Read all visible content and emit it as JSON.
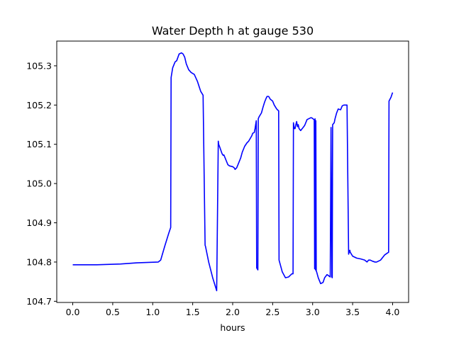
{
  "chart_data": {
    "type": "line",
    "title": "Water Depth h at gauge 530",
    "xlabel": "hours",
    "ylabel": "",
    "xlim": [
      -0.2,
      4.2
    ],
    "ylim": [
      104.697,
      105.363
    ],
    "xticks": [
      0.0,
      0.5,
      1.0,
      1.5,
      2.0,
      2.5,
      3.0,
      3.5,
      4.0
    ],
    "xtick_labels": [
      "0.0",
      "0.5",
      "1.0",
      "1.5",
      "2.0",
      "2.5",
      "3.0",
      "3.5",
      "4.0"
    ],
    "yticks": [
      104.7,
      104.8,
      104.9,
      105.0,
      105.1,
      105.2,
      105.3
    ],
    "ytick_labels": [
      "104.7",
      "104.8",
      "104.9",
      "105.0",
      "105.1",
      "105.2",
      "105.3"
    ],
    "grid": false,
    "colors": {
      "line": "#0000ff",
      "axes": "#000000",
      "background": "#ffffff"
    },
    "series": [
      {
        "name": "",
        "x": [
          0.0,
          0.3,
          0.6,
          0.8,
          1.07,
          1.1,
          1.15,
          1.2,
          1.225,
          1.23,
          1.25,
          1.28,
          1.3,
          1.33,
          1.36,
          1.38,
          1.4,
          1.42,
          1.45,
          1.48,
          1.52,
          1.56,
          1.6,
          1.63,
          1.655,
          1.66,
          1.7,
          1.75,
          1.8,
          1.82,
          1.825,
          1.84,
          1.86,
          1.87,
          1.88,
          1.89,
          1.9,
          1.92,
          1.94,
          1.96,
          2.0,
          2.02,
          2.03,
          2.05,
          2.07,
          2.1,
          2.12,
          2.15,
          2.18,
          2.2,
          2.22,
          2.24,
          2.25,
          2.27,
          2.28,
          2.295,
          2.3,
          2.315,
          2.32,
          2.33,
          2.36,
          2.38,
          2.4,
          2.42,
          2.43,
          2.45,
          2.47,
          2.5,
          2.52,
          2.55,
          2.575,
          2.58,
          2.62,
          2.66,
          2.7,
          2.74,
          2.755,
          2.76,
          2.77,
          2.78,
          2.79,
          2.8,
          2.81,
          2.82,
          2.83,
          2.85,
          2.87,
          2.9,
          2.93,
          2.95,
          2.98,
          3.0,
          3.02,
          3.025,
          3.03,
          3.035,
          3.04,
          3.045,
          3.05,
          3.07,
          3.1,
          3.13,
          3.15,
          3.18,
          3.2,
          3.22,
          3.23,
          3.24,
          3.245,
          3.25,
          3.27,
          3.28,
          3.3,
          3.32,
          3.35,
          3.37,
          3.39,
          3.41,
          3.43,
          3.45,
          3.46,
          3.465,
          3.47,
          3.5,
          3.55,
          3.6,
          3.65,
          3.68,
          3.7,
          3.72,
          3.75,
          3.78,
          3.8,
          3.85,
          3.9,
          3.95,
          3.955,
          3.96,
          3.98,
          4.0
        ],
        "y": [
          104.793,
          104.793,
          104.795,
          104.798,
          104.8,
          104.805,
          104.84,
          104.873,
          104.888,
          105.27,
          105.295,
          105.31,
          105.313,
          105.33,
          105.333,
          105.33,
          105.322,
          105.305,
          105.29,
          105.283,
          105.278,
          105.26,
          105.235,
          105.225,
          104.843,
          104.84,
          104.8,
          104.76,
          104.727,
          105.108,
          105.1,
          105.092,
          105.08,
          105.075,
          105.072,
          105.073,
          105.068,
          105.058,
          105.048,
          105.045,
          105.043,
          105.04,
          105.036,
          105.04,
          105.05,
          105.065,
          105.08,
          105.095,
          105.104,
          105.108,
          105.115,
          105.122,
          105.128,
          105.13,
          105.14,
          105.16,
          104.785,
          104.78,
          105.165,
          105.17,
          105.18,
          105.195,
          105.208,
          105.218,
          105.222,
          105.222,
          105.215,
          105.21,
          105.2,
          105.19,
          105.185,
          104.805,
          104.775,
          104.76,
          104.762,
          104.77,
          104.77,
          105.155,
          105.14,
          105.14,
          105.15,
          105.158,
          105.145,
          105.15,
          105.14,
          105.135,
          105.14,
          105.148,
          105.163,
          105.165,
          105.168,
          105.166,
          105.162,
          104.783,
          105.165,
          104.78,
          105.16,
          104.777,
          104.775,
          104.76,
          104.745,
          104.748,
          104.76,
          104.768,
          104.765,
          104.762,
          105.143,
          104.762,
          104.76,
          105.15,
          105.155,
          105.165,
          105.18,
          105.19,
          105.188,
          105.198,
          105.2,
          105.2,
          105.2,
          104.82,
          104.828,
          104.83,
          104.825,
          104.815,
          104.81,
          104.808,
          104.805,
          104.8,
          104.805,
          104.805,
          104.802,
          104.8,
          104.8,
          104.805,
          104.818,
          104.825,
          105.21,
          105.212,
          105.22,
          105.232
        ]
      }
    ]
  }
}
